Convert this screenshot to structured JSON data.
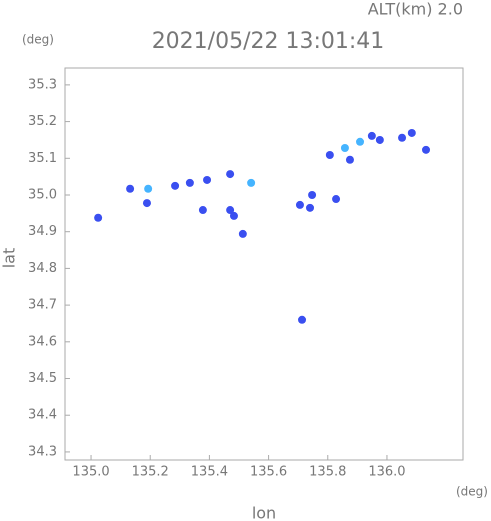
{
  "chart_data": {
    "type": "scatter",
    "title": "2021/05/22 13:01:41",
    "subtitle": "ALT(km) 2.0",
    "y_unit": "(deg)",
    "x_unit": "(deg)",
    "x_label": "lon",
    "y_label": "lat",
    "xlim": [
      134.912,
      136.257
    ],
    "ylim": [
      34.278,
      35.346
    ],
    "xticks": [
      {
        "value": 135,
        "label": "135.0"
      },
      135.2,
      135.4,
      135.6,
      135.8,
      {
        "value": 136,
        "label": "136.0"
      }
    ],
    "yticks": [
      34.3,
      34.4,
      34.5,
      34.6,
      34.7,
      34.8,
      34.9,
      {
        "value": 35,
        "label": "35.0"
      },
      35.1,
      35.2,
      35.3
    ],
    "series": [
      {
        "color": "#3a4ff0",
        "x": [
          135.024,
          135.132,
          135.189,
          135.284,
          135.334,
          135.392,
          135.378,
          135.47,
          135.47,
          135.483,
          135.513,
          135.706,
          135.747,
          135.74,
          135.828,
          135.713,
          135.807,
          135.875,
          135.949,
          135.976,
          136.051,
          136.084,
          136.132
        ],
        "y": [
          34.938,
          35.017,
          34.978,
          35.025,
          35.033,
          35.041,
          34.959,
          35.057,
          34.959,
          34.943,
          34.894,
          34.973,
          35.0,
          34.965,
          34.989,
          34.66,
          35.109,
          35.096,
          35.161,
          35.15,
          35.156,
          35.169,
          35.123
        ]
      },
      {
        "color": "#45b4ff",
        "x": [
          135.193,
          135.858,
          135.909,
          135.541
        ],
        "y": [
          35.017,
          35.128,
          35.145,
          35.033
        ]
      }
    ]
  }
}
